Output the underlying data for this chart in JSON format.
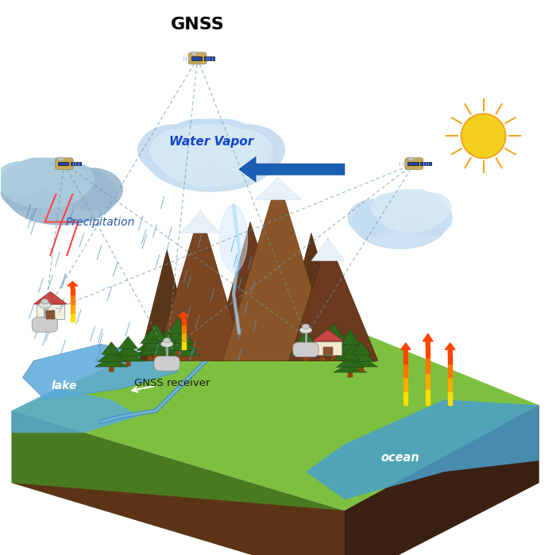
{
  "title": "GNSS",
  "title_fontsize": 16,
  "title_fontweight": "bold",
  "background_color": "#ffffff",
  "labels": {
    "water_vapor": "Water Vapor",
    "precipitation": "Precipitation",
    "gnss_receiver": "GNSS receiver",
    "lake": "lake",
    "ocean": "ocean"
  },
  "colors": {
    "sky": "#e8f4fc",
    "ground_green": "#7ab648",
    "ground_dark": "#5a8a2a",
    "mountain_brown": "#6b3a1f",
    "mountain_dark": "#4a2810",
    "water_blue": "#5aabdc",
    "water_light": "#87ceeb",
    "soil_brown": "#5c3317",
    "cloud_blue": "#b0cce8",
    "cloud_white": "#d0e8f5",
    "dashed_line": "#6699aa",
    "blue_arrow": "#1a5fb4",
    "sun_yellow": "#f5d020",
    "sun_orange": "#f5a623",
    "rain_blue": "#4488bb",
    "tree_green": "#2d6a1a",
    "tree_dark": "#1a4010",
    "snow_white": "#e8f0f8",
    "heat_red": "#dd2222",
    "heat_orange": "#ff8800",
    "heat_yellow": "#ffdd00",
    "lightning_red": "#dd1111",
    "river_blue": "#4488cc"
  }
}
